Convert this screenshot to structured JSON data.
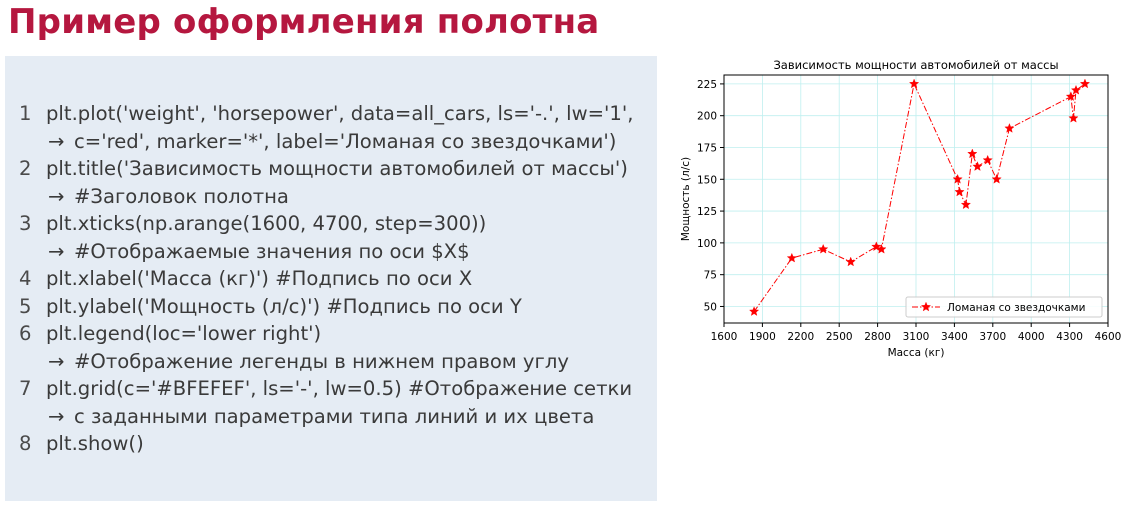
{
  "slide": {
    "title": "Пример оформления полотна"
  },
  "code": [
    {
      "num": "1",
      "text": "plt.plot('weight', 'horsepower', data=all_cars, ls='-.', lw='1',",
      "cont": "c='red', marker='*', label='Ломаная со звездочками')"
    },
    {
      "num": "2",
      "text": "plt.title('Зависимость мощности автомобилей от массы')",
      "cont": "#Заголовок полотна"
    },
    {
      "num": "3",
      "text": "plt.xticks(np.arange(1600, 4700, step=300))",
      "cont": "#Отображаемые значения по оси $X$"
    },
    {
      "num": "4",
      "text": "plt.xlabel('Масса (кг)') #Подпись по оси X",
      "cont": ""
    },
    {
      "num": "5",
      "text": "plt.ylabel('Мощность (л/с)') #Подпись по оси Y",
      "cont": ""
    },
    {
      "num": "6",
      "text": "plt.legend(loc='lower right')",
      "cont": "#Отображение легенды в нижнем правом углу"
    },
    {
      "num": "7",
      "text": "plt.grid(c='#BFEFEF', ls='-', lw=0.5) #Отображение сетки",
      "cont": "с заданными параметрами типа линий и их цвета"
    },
    {
      "num": "8",
      "text": "plt.show()",
      "cont": ""
    }
  ],
  "arrow_glyph": "→",
  "chart_data": {
    "type": "line",
    "title": "Зависимость мощности автомобилей от массы",
    "xlabel": "Масса (кг)",
    "ylabel": "Мощность (л/с)",
    "xlim": [
      1600,
      4600
    ],
    "ylim": [
      37,
      232
    ],
    "xticks": [
      1600,
      1900,
      2200,
      2500,
      2800,
      3100,
      3400,
      3700,
      4000,
      4300,
      4600
    ],
    "yticks": [
      50,
      75,
      100,
      125,
      150,
      175,
      200,
      225
    ],
    "grid": true,
    "grid_color": "#BFEFEF",
    "legend_position": "lower right",
    "series": [
      {
        "name": "Ломаная со звездочками",
        "color": "#ff0000",
        "line_style": "dashdot",
        "marker": "star",
        "x": [
          1835,
          2130,
          2375,
          2590,
          2790,
          2830,
          3085,
          3425,
          3440,
          3490,
          3540,
          3580,
          3660,
          3730,
          3830,
          4310,
          4330,
          4350,
          4420
        ],
        "y": [
          46,
          88,
          95,
          85,
          97,
          95,
          225,
          150,
          140,
          130,
          170,
          160,
          165,
          150,
          190,
          215,
          198,
          220,
          225
        ]
      }
    ]
  }
}
